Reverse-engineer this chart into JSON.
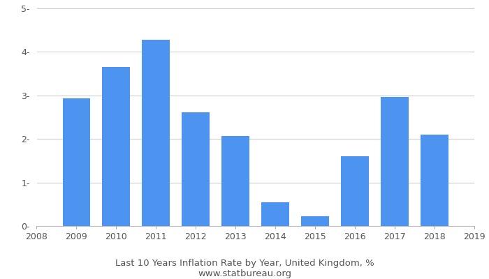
{
  "years": [
    2009,
    2010,
    2011,
    2012,
    2013,
    2014,
    2015,
    2016,
    2017,
    2018
  ],
  "values": [
    2.93,
    3.65,
    4.28,
    2.62,
    2.07,
    0.54,
    0.22,
    1.6,
    2.97,
    2.1
  ],
  "bar_color": "#4D94F0",
  "xlim": [
    2008,
    2019
  ],
  "ylim": [
    0,
    5
  ],
  "yticks": [
    0,
    1,
    2,
    3,
    4,
    5
  ],
  "ytick_labels": [
    "0-",
    "1-",
    "2-",
    "3-",
    "4-",
    "5-"
  ],
  "xticks": [
    2008,
    2009,
    2010,
    2011,
    2012,
    2013,
    2014,
    2015,
    2016,
    2017,
    2018,
    2019
  ],
  "title": "Last 10 Years Inflation Rate by Year, United Kingdom, %",
  "subtitle": "www.statbureau.org",
  "title_fontsize": 9.5,
  "subtitle_fontsize": 9.5,
  "bar_width": 0.7,
  "background_color": "#ffffff",
  "grid_color": "#cccccc",
  "tick_label_color": "#555555",
  "text_color": "#555555"
}
